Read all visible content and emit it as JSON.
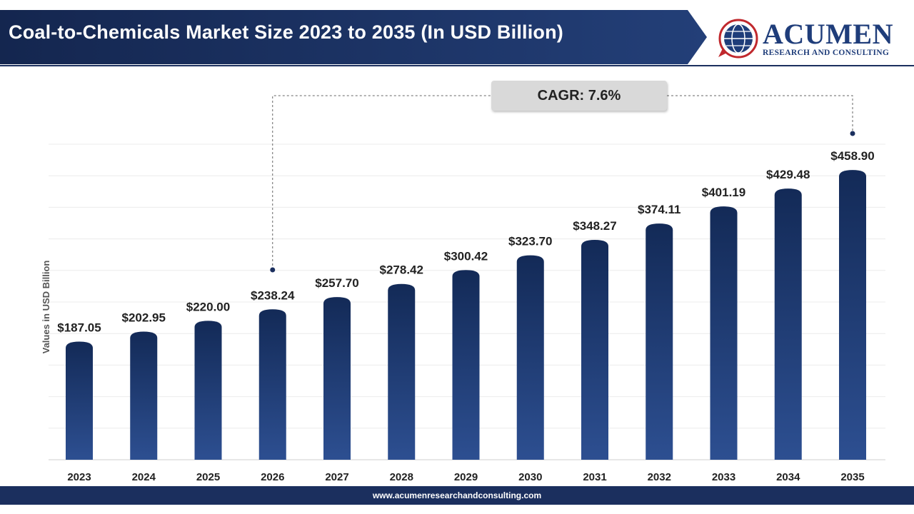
{
  "header": {
    "title": "Coal-to-Chemicals Market Size 2023 to 2035 (In USD Billion)",
    "colors": {
      "banner": "#1b2f5e",
      "banner_light": "#2a4a85"
    }
  },
  "brand": {
    "name": "ACUMEN",
    "subtitle": "RESEARCH AND CONSULTING",
    "icon": "acumen-globe-logo-icon",
    "color": "#1f3d7a",
    "accent": "#c0282d"
  },
  "cagr": {
    "label": "CAGR: 7.6%"
  },
  "footer": {
    "url": "www.acumenresearchandconsulting.com"
  },
  "chart_data": {
    "type": "bar",
    "title": "Coal-to-Chemicals Market Size 2023 to 2035 (In USD Billion)",
    "ylabel": "Values in USD Billion",
    "xlabel": "",
    "categories": [
      "2023",
      "2024",
      "2025",
      "2026",
      "2027",
      "2028",
      "2029",
      "2030",
      "2031",
      "2032",
      "2033",
      "2034",
      "2035"
    ],
    "values": [
      187.05,
      202.95,
      220.0,
      238.24,
      257.7,
      278.42,
      300.42,
      323.7,
      348.27,
      374.11,
      401.19,
      429.48,
      458.9
    ],
    "labels": [
      "$187.05",
      "$202.95",
      "$220.00",
      "$238.24",
      "$257.70",
      "$278.42",
      "$300.42",
      "$323.70",
      "$348.27",
      "$374.11",
      "$401.19",
      "$429.48",
      "$458.90"
    ],
    "ylim": [
      0,
      500
    ],
    "grid": true,
    "legend": "none",
    "bar_color_top": "#132a57",
    "bar_color_bottom": "#2d4f91"
  }
}
